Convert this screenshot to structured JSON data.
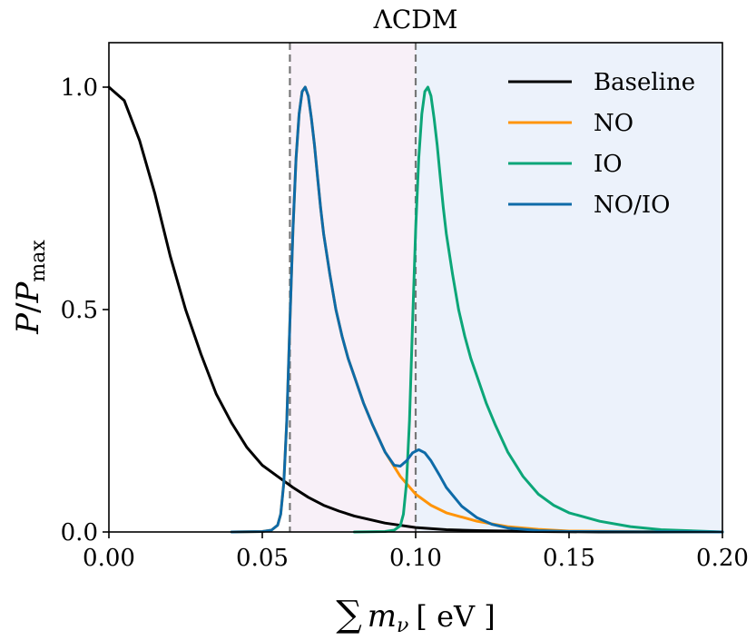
{
  "chart_data": {
    "type": "line",
    "title": "ΛCDM",
    "xlabel": {
      "sum_symbol": "∑",
      "variable": "m",
      "subscript": "ν",
      "unit": "[ eV ]"
    },
    "ylabel": {
      "numerator": "P",
      "slash": "/",
      "denominator": "P",
      "subscript": "max"
    },
    "xlim": [
      0.0,
      0.2
    ],
    "ylim": [
      0.0,
      1.1
    ],
    "xticks": [
      0.0,
      0.05,
      0.1,
      0.15,
      0.2
    ],
    "xtick_labels": [
      "0.00",
      "0.05",
      "0.10",
      "0.15",
      "0.20"
    ],
    "yticks": [
      0.0,
      0.5,
      1.0
    ],
    "ytick_labels": [
      "0.0",
      "0.5",
      "1.0"
    ],
    "vlines": [
      0.059,
      0.1
    ],
    "shaded_regions": [
      {
        "name": "NO-region",
        "x": [
          0.059,
          0.1
        ],
        "color": "#f8f0f8"
      },
      {
        "name": "IO-region",
        "x": [
          0.1,
          0.2
        ],
        "color": "#ecf2fb"
      }
    ],
    "legend_position": "top-right",
    "series": [
      {
        "name": "Baseline",
        "color": "#000000",
        "x": [
          0.0,
          0.005,
          0.01,
          0.015,
          0.02,
          0.025,
          0.03,
          0.035,
          0.04,
          0.045,
          0.05,
          0.055,
          0.06,
          0.065,
          0.07,
          0.075,
          0.08,
          0.09,
          0.1,
          0.11,
          0.12,
          0.14,
          0.16,
          0.2
        ],
        "y": [
          1.0,
          0.97,
          0.88,
          0.76,
          0.62,
          0.5,
          0.4,
          0.31,
          0.245,
          0.19,
          0.15,
          0.125,
          0.1,
          0.078,
          0.06,
          0.047,
          0.036,
          0.02,
          0.01,
          0.005,
          0.003,
          0.001,
          0.0,
          0.0
        ]
      },
      {
        "name": "NO",
        "color": "#ff9408",
        "x": [
          0.04,
          0.05,
          0.053,
          0.055,
          0.056,
          0.057,
          0.058,
          0.059,
          0.06,
          0.061,
          0.062,
          0.063,
          0.064,
          0.065,
          0.066,
          0.067,
          0.068,
          0.069,
          0.07,
          0.072,
          0.074,
          0.076,
          0.078,
          0.08,
          0.083,
          0.086,
          0.09,
          0.095,
          0.1,
          0.105,
          0.11,
          0.12,
          0.13,
          0.14,
          0.15,
          0.2
        ],
        "y": [
          0.0,
          0.001,
          0.004,
          0.015,
          0.04,
          0.11,
          0.25,
          0.47,
          0.68,
          0.84,
          0.94,
          0.99,
          1.0,
          0.98,
          0.93,
          0.87,
          0.8,
          0.73,
          0.67,
          0.58,
          0.5,
          0.44,
          0.39,
          0.35,
          0.29,
          0.24,
          0.18,
          0.125,
          0.085,
          0.06,
          0.043,
          0.024,
          0.012,
          0.006,
          0.002,
          0.0
        ]
      },
      {
        "name": "IO",
        "color": "#0ca678",
        "x": [
          0.08,
          0.09,
          0.093,
          0.095,
          0.096,
          0.097,
          0.098,
          0.099,
          0.1,
          0.101,
          0.102,
          0.103,
          0.104,
          0.105,
          0.106,
          0.107,
          0.108,
          0.109,
          0.11,
          0.112,
          0.114,
          0.116,
          0.118,
          0.12,
          0.123,
          0.126,
          0.13,
          0.135,
          0.14,
          0.145,
          0.15,
          0.16,
          0.17,
          0.18,
          0.2
        ],
        "y": [
          0.0,
          0.001,
          0.004,
          0.014,
          0.04,
          0.11,
          0.25,
          0.47,
          0.68,
          0.84,
          0.94,
          0.99,
          1.0,
          0.98,
          0.93,
          0.87,
          0.8,
          0.73,
          0.67,
          0.58,
          0.5,
          0.44,
          0.39,
          0.35,
          0.29,
          0.24,
          0.18,
          0.125,
          0.085,
          0.06,
          0.043,
          0.024,
          0.012,
          0.005,
          0.0
        ]
      },
      {
        "name": "NO/IO",
        "color": "#0e6ba8",
        "x": [
          0.04,
          0.05,
          0.053,
          0.055,
          0.056,
          0.057,
          0.058,
          0.059,
          0.06,
          0.061,
          0.062,
          0.063,
          0.064,
          0.065,
          0.066,
          0.067,
          0.068,
          0.069,
          0.07,
          0.072,
          0.074,
          0.076,
          0.078,
          0.08,
          0.083,
          0.086,
          0.09,
          0.093,
          0.095,
          0.097,
          0.099,
          0.101,
          0.103,
          0.105,
          0.108,
          0.11,
          0.115,
          0.12,
          0.125,
          0.13,
          0.14,
          0.15,
          0.2
        ],
        "y": [
          0.0,
          0.001,
          0.004,
          0.015,
          0.04,
          0.11,
          0.25,
          0.47,
          0.68,
          0.84,
          0.94,
          0.99,
          1.0,
          0.98,
          0.93,
          0.87,
          0.8,
          0.73,
          0.67,
          0.58,
          0.5,
          0.44,
          0.39,
          0.35,
          0.29,
          0.24,
          0.18,
          0.15,
          0.148,
          0.16,
          0.178,
          0.185,
          0.178,
          0.16,
          0.125,
          0.1,
          0.058,
          0.032,
          0.017,
          0.009,
          0.003,
          0.001,
          0.0
        ]
      }
    ]
  }
}
